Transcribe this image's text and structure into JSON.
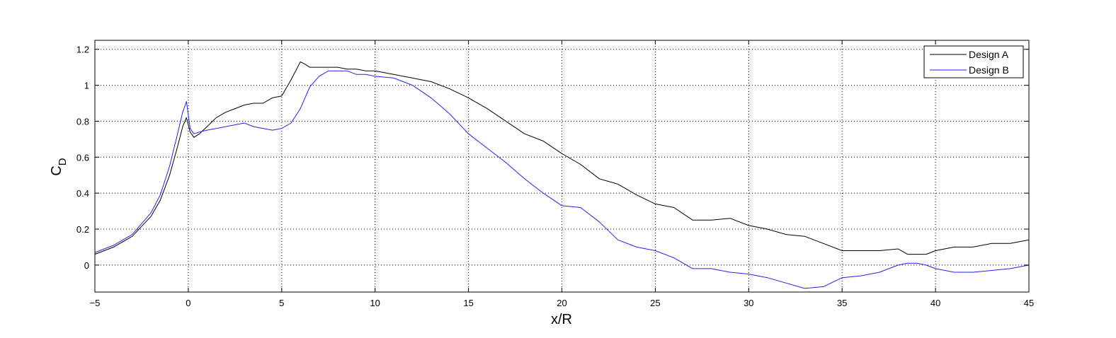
{
  "chart_data": {
    "type": "line",
    "title": "",
    "xlabel": "x/R",
    "ylabel": {
      "main": "C",
      "subscript": "D"
    },
    "xlim": [
      -5,
      45
    ],
    "ylim": [
      -0.15,
      1.25
    ],
    "grid": true,
    "legend_position": "top-right",
    "x_ticks": [
      -5,
      0,
      5,
      10,
      15,
      20,
      25,
      30,
      35,
      40,
      45
    ],
    "x_tick_labels": [
      "−5",
      "0",
      "5",
      "10",
      "15",
      "20",
      "25",
      "30",
      "35",
      "40",
      "45"
    ],
    "y_ticks": [
      0,
      0.2,
      0.4,
      0.6,
      0.8,
      1,
      1.2
    ],
    "y_tick_labels": [
      "0",
      "0.2",
      "0.4",
      "0.6",
      "0.8",
      "1",
      "1.2"
    ],
    "series": [
      {
        "name": "Design A",
        "color": "#000000",
        "x": [
          -5,
          -4,
          -3,
          -2,
          -1.5,
          -1,
          -0.6,
          -0.3,
          -0.1,
          0.1,
          0.3,
          0.6,
          1,
          1.5,
          2,
          2.5,
          3,
          3.5,
          4,
          4.5,
          5,
          5.5,
          6,
          6.2,
          6.5,
          7,
          7.5,
          8,
          8.5,
          9,
          9.5,
          10,
          11,
          12,
          13,
          14,
          15,
          16,
          17,
          18,
          19,
          20,
          21,
          22,
          23,
          24,
          25,
          26,
          27,
          28,
          29,
          30,
          31,
          32,
          33,
          34,
          35,
          36,
          37,
          38,
          38.5,
          39,
          39.5,
          40,
          41,
          42,
          43,
          44,
          45
        ],
        "y": [
          0.06,
          0.1,
          0.16,
          0.27,
          0.36,
          0.5,
          0.65,
          0.77,
          0.82,
          0.74,
          0.71,
          0.73,
          0.77,
          0.82,
          0.85,
          0.87,
          0.89,
          0.9,
          0.9,
          0.93,
          0.94,
          1.03,
          1.13,
          1.12,
          1.1,
          1.1,
          1.1,
          1.1,
          1.09,
          1.09,
          1.08,
          1.08,
          1.06,
          1.04,
          1.02,
          0.98,
          0.93,
          0.87,
          0.8,
          0.73,
          0.69,
          0.62,
          0.56,
          0.48,
          0.45,
          0.39,
          0.34,
          0.32,
          0.25,
          0.25,
          0.26,
          0.22,
          0.2,
          0.17,
          0.16,
          0.12,
          0.08,
          0.08,
          0.08,
          0.09,
          0.06,
          0.06,
          0.06,
          0.08,
          0.1,
          0.1,
          0.12,
          0.12,
          0.14
        ]
      },
      {
        "name": "Design B",
        "color": "#2222ee",
        "x": [
          -5,
          -4,
          -3,
          -2,
          -1.5,
          -1,
          -0.6,
          -0.3,
          -0.1,
          0.1,
          0.3,
          0.6,
          1,
          1.5,
          2,
          2.5,
          3,
          3.5,
          4,
          4.5,
          5,
          5.5,
          6,
          6.5,
          7,
          7.5,
          8,
          8.5,
          9,
          9.5,
          10,
          11,
          12,
          13,
          14,
          15,
          16,
          17,
          18,
          19,
          20,
          21,
          22,
          23,
          24,
          25,
          26,
          27,
          28,
          29,
          30,
          31,
          32,
          33,
          34,
          35,
          36,
          37,
          38,
          38.5,
          39,
          39.5,
          40,
          41,
          42,
          43,
          44,
          45
        ],
        "y": [
          0.07,
          0.11,
          0.17,
          0.29,
          0.39,
          0.55,
          0.72,
          0.85,
          0.91,
          0.76,
          0.73,
          0.74,
          0.75,
          0.76,
          0.77,
          0.78,
          0.79,
          0.77,
          0.76,
          0.75,
          0.76,
          0.79,
          0.87,
          0.99,
          1.05,
          1.08,
          1.08,
          1.08,
          1.06,
          1.06,
          1.05,
          1.04,
          1.0,
          0.93,
          0.84,
          0.73,
          0.65,
          0.57,
          0.48,
          0.4,
          0.33,
          0.32,
          0.24,
          0.14,
          0.1,
          0.08,
          0.04,
          -0.02,
          -0.02,
          -0.04,
          -0.05,
          -0.07,
          -0.1,
          -0.13,
          -0.12,
          -0.07,
          -0.06,
          -0.04,
          0.0,
          0.01,
          0.01,
          0.0,
          -0.02,
          -0.04,
          -0.04,
          -0.03,
          -0.02,
          0.0
        ]
      }
    ]
  }
}
